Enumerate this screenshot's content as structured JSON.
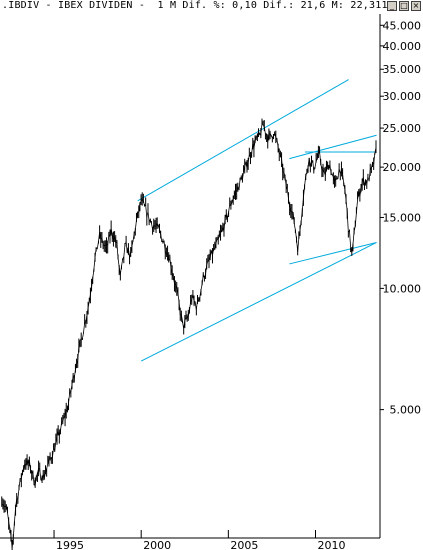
{
  "window": {
    "title": ".IBDIV - IBEX DIVIDEN -  1 M Dif. %: 0,10 Dif.: 21,6 M: 22,311,",
    "min_button": "_",
    "max_button": "□",
    "close_button": "×"
  },
  "colors": {
    "price": "#000000",
    "channel": "#00aadd",
    "axis": "#000000",
    "background": "#ffffff"
  },
  "chart_data": {
    "type": "line",
    "title": "",
    "xlabel": "",
    "ylabel": "",
    "y_scale": "log",
    "xlim": [
      1991.9,
      2013.7
    ],
    "ylim": [
      2400,
      48000
    ],
    "grid": false,
    "y_ticks": [
      {
        "v": 45000,
        "label": "45.000"
      },
      {
        "v": 40000,
        "label": "40.000"
      },
      {
        "v": 35000,
        "label": "35.000"
      },
      {
        "v": 30000,
        "label": "30.000"
      },
      {
        "v": 25000,
        "label": "25.000"
      },
      {
        "v": 20000,
        "label": "20.000"
      },
      {
        "v": 15000,
        "label": "15.000"
      },
      {
        "v": 10000,
        "label": "10.000"
      },
      {
        "v": 5000,
        "label": "5.000"
      }
    ],
    "x_ticks": [
      {
        "v": 1995,
        "label": "1995"
      },
      {
        "v": 2000,
        "label": "2000"
      },
      {
        "v": 2005,
        "label": "2005"
      },
      {
        "v": 2010,
        "label": "2010"
      }
    ],
    "series": [
      {
        "style": "ohlc-bars",
        "x": [
          1992.0,
          1992.3,
          1992.6,
          1992.8,
          1993.0,
          1993.3,
          1993.6,
          1993.9,
          1994.1,
          1994.4,
          1994.7,
          1995.0,
          1995.4,
          1995.8,
          1996.2,
          1996.6,
          1997.0,
          1997.3,
          1997.6,
          1998.0,
          1998.3,
          1998.6,
          1998.8,
          1999.1,
          1999.4,
          1999.7,
          2000.0,
          2000.3,
          2000.6,
          2001.0,
          2001.3,
          2001.6,
          2001.8,
          2002.1,
          2002.4,
          2002.7,
          2002.9,
          2003.2,
          2003.6,
          2004.0,
          2004.4,
          2004.8,
          2005.2,
          2005.6,
          2006.0,
          2006.4,
          2006.8,
          2007.0,
          2007.3,
          2007.6,
          2007.9,
          2008.2,
          2008.5,
          2008.8,
          2009.0,
          2009.3,
          2009.6,
          2009.9,
          2010.2,
          2010.5,
          2010.8,
          2011.1,
          2011.4,
          2011.7,
          2011.9,
          2012.1,
          2012.4,
          2012.7,
          2013.0,
          2013.2,
          2013.4,
          2013.5
        ],
        "y": [
          3000,
          2800,
          2250,
          2900,
          3200,
          3700,
          3650,
          3300,
          3500,
          3400,
          3700,
          4000,
          4500,
          5100,
          6300,
          7600,
          9200,
          11500,
          13500,
          12500,
          14000,
          12800,
          10600,
          12800,
          12000,
          14500,
          16500,
          15500,
          14500,
          14000,
          13000,
          12000,
          11000,
          9500,
          8000,
          8500,
          9500,
          9000,
          10800,
          12000,
          13000,
          14500,
          16500,
          18000,
          20000,
          22500,
          24000,
          25500,
          23500,
          24500,
          22000,
          19000,
          16500,
          14500,
          12500,
          17000,
          21000,
          20000,
          21500,
          19000,
          20500,
          18000,
          20000,
          17500,
          14000,
          12000,
          16500,
          18500,
          18500,
          19500,
          21000,
          22300
        ]
      }
    ],
    "channel_lines": [
      {
        "x": [
          1999.8,
          2011.9
        ],
        "y": [
          16500,
          33000
        ]
      },
      {
        "x": [
          2000.0,
          2013.5
        ],
        "y": [
          6600,
          13000
        ]
      },
      {
        "x": [
          2008.5,
          2013.5
        ],
        "y": [
          11500,
          13000
        ]
      },
      {
        "x": [
          2008.5,
          2013.5
        ],
        "y": [
          21000,
          24000
        ]
      },
      {
        "x": [
          2009.4,
          2013.5
        ],
        "y": [
          21800,
          21800
        ]
      }
    ]
  }
}
